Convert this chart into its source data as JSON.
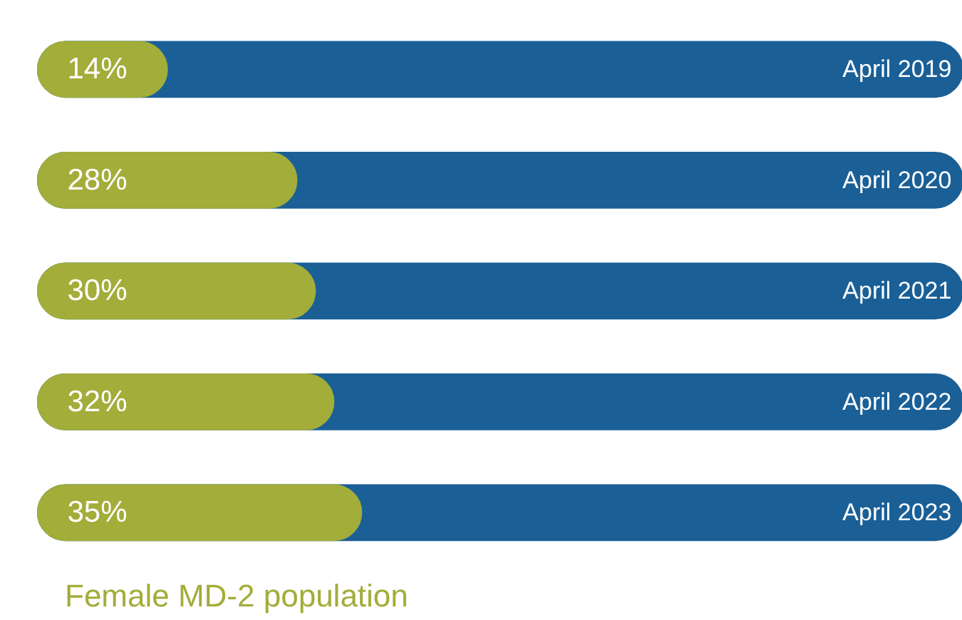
{
  "chart_data": {
    "type": "bar",
    "orientation": "horizontal",
    "title": "Female MD-2 population",
    "categories": [
      "April 2019",
      "April 2020",
      "April 2021",
      "April 2022",
      "April 2023"
    ],
    "values": [
      14,
      28,
      30,
      32,
      35
    ],
    "value_labels": [
      "14%",
      "28%",
      "30%",
      "32%",
      "35%"
    ],
    "color": "#a2ad3a",
    "bands": [
      {
        "axis": "x",
        "from": 0,
        "to": 100,
        "label": null,
        "color": "#1a5f96"
      }
    ],
    "xlim": [
      0,
      100
    ],
    "tick_labels": false,
    "grid": false
  }
}
